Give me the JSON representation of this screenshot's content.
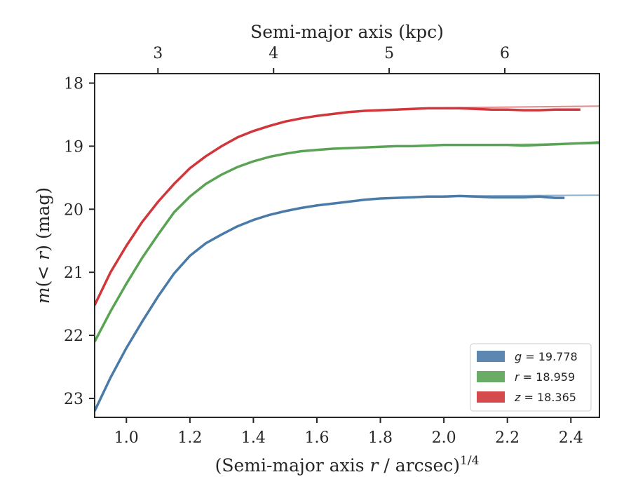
{
  "chart_data": {
    "type": "line",
    "top_xlabel": "Semi-major axis (kpc)",
    "ylabel": "m(< r) (mag)",
    "xlabel": "(Semi-major axis r / arcsec)^1/4",
    "xlim": [
      0.9,
      2.49
    ],
    "ylim": [
      23.3,
      17.85
    ],
    "y_inverted": true,
    "x_ticks": [
      1.0,
      1.2,
      1.4,
      1.6,
      1.8,
      2.0,
      2.2,
      2.4
    ],
    "x_tick_labels": [
      "1.0",
      "1.2",
      "1.4",
      "1.6",
      "1.8",
      "2.0",
      "2.2",
      "2.4"
    ],
    "y_ticks": [
      18,
      19,
      20,
      21,
      22,
      23
    ],
    "y_tick_labels": [
      "18",
      "19",
      "20",
      "21",
      "22",
      "23"
    ],
    "top_ticks_kpc": [
      3,
      4,
      5,
      6
    ],
    "top_tick_labels": [
      "3",
      "4",
      "5",
      "6"
    ],
    "top_ticks_position_x": [
      1.0994,
      1.4636,
      1.8277,
      2.1919
    ],
    "grid": false,
    "legend_position": "lower-right",
    "series": [
      {
        "name": "g = 19.778",
        "legend_var": "g",
        "legend_val": "19.778",
        "color": "#4a7aa8",
        "fit_color": "#8fb0cc",
        "x": [
          0.9,
          0.95,
          1.0,
          1.05,
          1.1,
          1.15,
          1.2,
          1.25,
          1.3,
          1.35,
          1.4,
          1.45,
          1.5,
          1.55,
          1.6,
          1.65,
          1.7,
          1.75,
          1.8,
          1.85,
          1.9,
          1.95,
          2.0,
          2.05,
          2.1,
          2.15,
          2.2,
          2.25,
          2.3,
          2.35,
          2.38
        ],
        "y": [
          23.2,
          22.67,
          22.2,
          21.78,
          21.38,
          21.02,
          20.74,
          20.54,
          20.4,
          20.27,
          20.17,
          20.09,
          20.03,
          19.98,
          19.94,
          19.91,
          19.88,
          19.85,
          19.83,
          19.82,
          19.81,
          19.8,
          19.8,
          19.79,
          19.8,
          19.81,
          19.81,
          19.81,
          19.8,
          19.82,
          19.82
        ],
        "fit_x": [
          2.0,
          2.49
        ],
        "fit_y": [
          19.79,
          19.778
        ]
      },
      {
        "name": "r = 18.959",
        "legend_var": "r",
        "legend_val": "18.959",
        "color": "#5aa355",
        "fit_color": "#9ccb98",
        "x": [
          0.9,
          0.95,
          1.0,
          1.05,
          1.1,
          1.15,
          1.2,
          1.25,
          1.3,
          1.35,
          1.4,
          1.45,
          1.5,
          1.55,
          1.6,
          1.65,
          1.7,
          1.75,
          1.8,
          1.85,
          1.9,
          1.95,
          2.0,
          2.05,
          2.1,
          2.15,
          2.2,
          2.25,
          2.3,
          2.35,
          2.4,
          2.45,
          2.49
        ],
        "y": [
          22.1,
          21.62,
          21.18,
          20.77,
          20.4,
          20.05,
          19.8,
          19.6,
          19.45,
          19.33,
          19.24,
          19.17,
          19.12,
          19.08,
          19.06,
          19.04,
          19.03,
          19.02,
          19.01,
          19.0,
          19.0,
          18.99,
          18.98,
          18.98,
          18.98,
          18.98,
          18.98,
          18.99,
          18.98,
          18.97,
          18.96,
          18.95,
          18.94
        ],
        "fit_x": [
          2.0,
          2.49
        ],
        "fit_y": [
          18.98,
          18.96
        ]
      },
      {
        "name": "z = 18.365",
        "legend_var": "z",
        "legend_val": "18.365",
        "color": "#d0363a",
        "fit_color": "#e58a8c",
        "x": [
          0.9,
          0.95,
          1.0,
          1.05,
          1.1,
          1.15,
          1.2,
          1.25,
          1.3,
          1.35,
          1.4,
          1.45,
          1.5,
          1.55,
          1.6,
          1.65,
          1.7,
          1.75,
          1.8,
          1.85,
          1.9,
          1.95,
          2.0,
          2.05,
          2.1,
          2.15,
          2.2,
          2.25,
          2.3,
          2.35,
          2.4,
          2.43
        ],
        "y": [
          21.52,
          21.0,
          20.58,
          20.2,
          19.88,
          19.6,
          19.35,
          19.16,
          19.0,
          18.86,
          18.76,
          18.68,
          18.61,
          18.56,
          18.52,
          18.49,
          18.46,
          18.44,
          18.43,
          18.42,
          18.41,
          18.4,
          18.4,
          18.4,
          18.41,
          18.42,
          18.42,
          18.43,
          18.43,
          18.42,
          18.42,
          18.42
        ],
        "fit_x": [
          2.0,
          2.49
        ],
        "fit_y": [
          18.39,
          18.365
        ]
      }
    ]
  }
}
